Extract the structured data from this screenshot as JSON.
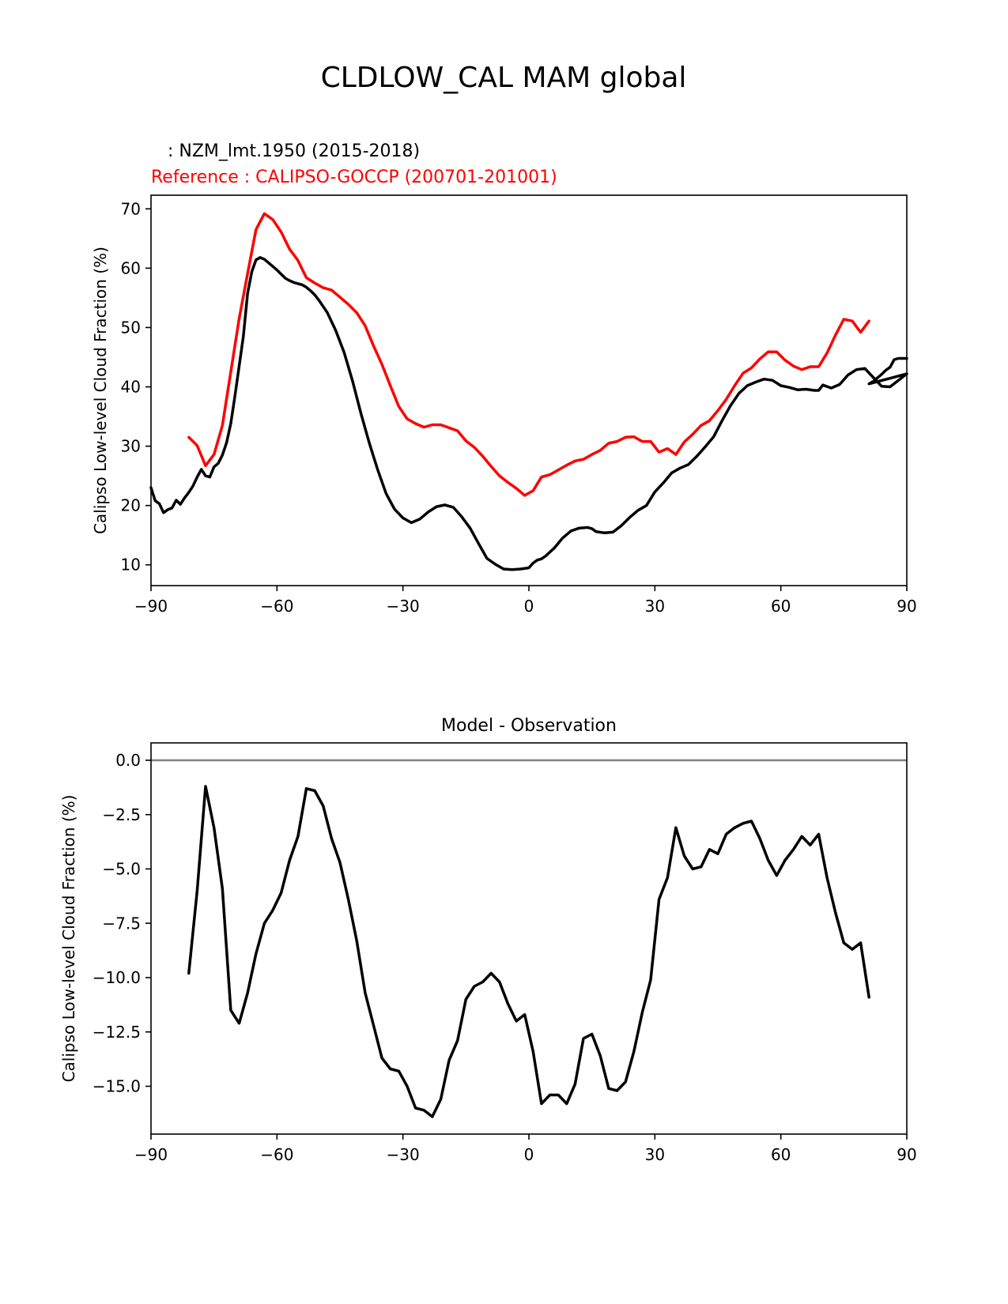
{
  "figure": {
    "suptitle": "CLDLOW_CAL MAM global"
  },
  "chart_data": [
    {
      "type": "line",
      "title_test": "   : NZM_lmt.1950 (2015-2018)",
      "title_ref": "Reference : CALIPSO-GOCCP (200701-201001)",
      "ylabel": "Calipso Low-level Cloud Fraction (%)",
      "xlim": [
        -90,
        90
      ],
      "ylim": [
        6.5,
        72.3
      ],
      "xticks": [
        -90,
        -60,
        -30,
        0,
        30,
        60,
        90
      ],
      "xtick_labels": [
        "−90",
        "−60",
        "−30",
        "0",
        "30",
        "60",
        "90"
      ],
      "yticks": [
        10,
        20,
        30,
        40,
        50,
        60,
        70
      ],
      "ytick_labels": [
        "10",
        "20",
        "30",
        "40",
        "50",
        "60",
        "70"
      ],
      "series": [
        {
          "name": "NZM_lmt.1950 (2015-2018)",
          "color": "#000000",
          "x": [
            -90,
            -89,
            -88,
            -87,
            -86,
            -85,
            -84,
            -83,
            -82,
            -81,
            -80,
            -79,
            -78,
            -77,
            -76,
            -75,
            -74,
            -73,
            -72,
            -71,
            -70,
            -69,
            -68,
            -67,
            -66,
            -65,
            -64,
            -63,
            -62,
            -61,
            -60,
            -59,
            -58,
            -57,
            -56,
            -55,
            -54,
            -53,
            -52,
            -51,
            -50,
            -48,
            -46,
            -44,
            -42,
            -40,
            -38,
            -36,
            -34,
            -32,
            -30,
            -28,
            -26,
            -24,
            -22,
            -20,
            -18,
            -16,
            -14,
            -12,
            -10,
            -8,
            -6,
            -4,
            -2,
            0,
            1,
            2,
            3,
            4,
            6,
            8,
            10,
            12,
            14,
            15,
            16,
            18,
            20,
            22,
            24,
            26,
            28,
            30,
            32,
            34,
            36,
            38,
            40,
            42,
            44,
            46,
            48,
            50,
            52,
            54,
            56,
            58,
            60,
            62,
            64,
            66,
            68,
            69,
            70,
            72,
            74,
            76,
            78,
            80,
            82,
            84,
            86,
            88,
            90
          ],
          "y": [
            23.0,
            20.8,
            20.3,
            18.8,
            19.3,
            19.6,
            20.9,
            20.2,
            21.3,
            22.2,
            23.3,
            24.8,
            26.1,
            25.0,
            24.8,
            26.5,
            27.1,
            28.5,
            30.6,
            33.8,
            38.5,
            43.5,
            48.5,
            55.8,
            59.4,
            61.4,
            61.8,
            61.5,
            60.9,
            60.3,
            59.7,
            59.0,
            58.3,
            57.9,
            57.6,
            57.4,
            57.2,
            56.8,
            56.2,
            55.5,
            54.6,
            52.5,
            49.5,
            45.8,
            41.0,
            35.5,
            30.5,
            26.0,
            22.0,
            19.4,
            17.9,
            17.1,
            17.7,
            18.9,
            19.8,
            20.1,
            19.7,
            18.1,
            16.2,
            13.6,
            11.1,
            10.1,
            9.3,
            9.2,
            9.3,
            9.5,
            10.3,
            10.8,
            11.0,
            11.5,
            12.8,
            14.5,
            15.7,
            16.2,
            16.3,
            16.1,
            15.6,
            15.4,
            15.5,
            16.6,
            18.0,
            19.2,
            20.0,
            22.3,
            23.8,
            25.5,
            26.3,
            26.9,
            28.3,
            29.9,
            31.6,
            34.3,
            36.8,
            38.9,
            40.2,
            40.8,
            41.3,
            41.1,
            40.2,
            39.9,
            39.5,
            39.6,
            39.4,
            39.4,
            40.3,
            39.8,
            40.4,
            42.0,
            42.9,
            43.1,
            41.6,
            40.1,
            40.0,
            41.1,
            42.2
          ],
          "x_tail": [
            81,
            82,
            83,
            84,
            85,
            86,
            87,
            88,
            89,
            90
          ],
          "y_tail": [
            40.5,
            40.9,
            41.5,
            42.1,
            42.8,
            43.3,
            44.6,
            44.8,
            44.8,
            44.8
          ]
        },
        {
          "name": "CALIPSO-GOCCP (200701-201001)",
          "color": "#ff0000",
          "x": [
            -81,
            -79,
            -77,
            -75,
            -73,
            -71,
            -69,
            -67,
            -65,
            -63,
            -61,
            -59,
            -57,
            -55,
            -53,
            -51,
            -49,
            -47,
            -45,
            -43,
            -41,
            -39,
            -37,
            -35,
            -33,
            -31,
            -29,
            -27,
            -25,
            -23,
            -21,
            -19,
            -17,
            -15,
            -13,
            -11,
            -9,
            -7,
            -5,
            -3,
            -1,
            1,
            3,
            5,
            7,
            9,
            11,
            13,
            15,
            17,
            19,
            21,
            23,
            25,
            27,
            29,
            31,
            33,
            35,
            37,
            39,
            41,
            43,
            45,
            47,
            49,
            51,
            53,
            55,
            57,
            59,
            61,
            63,
            65,
            67,
            69,
            71,
            73,
            75,
            77,
            79,
            81
          ],
          "y": [
            31.5,
            30.1,
            26.7,
            28.6,
            33.5,
            42.5,
            51.5,
            59.1,
            66.5,
            69.2,
            68.2,
            66.1,
            63.2,
            61.3,
            58.4,
            57.5,
            56.7,
            56.3,
            55.1,
            53.9,
            52.5,
            50.3,
            46.9,
            43.8,
            40.2,
            36.7,
            34.6,
            33.8,
            33.2,
            33.6,
            33.6,
            33.1,
            32.6,
            30.9,
            29.8,
            28.3,
            26.6,
            25.0,
            23.9,
            22.9,
            21.7,
            22.5,
            24.8,
            25.2,
            26.0,
            26.8,
            27.5,
            27.8,
            28.6,
            29.3,
            30.5,
            30.8,
            31.5,
            31.6,
            30.8,
            30.8,
            29.0,
            29.6,
            28.6,
            30.7,
            32.0,
            33.5,
            34.3,
            36.0,
            37.9,
            40.2,
            42.3,
            43.2,
            44.7,
            45.9,
            45.9,
            44.5,
            43.5,
            42.9,
            43.4,
            43.4,
            45.7,
            48.7,
            51.4,
            51.1,
            49.2,
            51.1
          ]
        }
      ]
    },
    {
      "type": "line",
      "title": "Model - Observation",
      "ylabel": "Calipso Low-level Cloud Fraction (%)",
      "xlim": [
        -90,
        90
      ],
      "ylim": [
        -17.2,
        0.8
      ],
      "xticks": [
        -90,
        -60,
        -30,
        0,
        30,
        60,
        90
      ],
      "xtick_labels": [
        "−90",
        "−60",
        "−30",
        "0",
        "30",
        "60",
        "90"
      ],
      "yticks": [
        0.0,
        -2.5,
        -5.0,
        -7.5,
        -10.0,
        -12.5,
        -15.0
      ],
      "ytick_labels": [
        "0.0",
        "−2.5",
        "−5.0",
        "−7.5",
        "−10.0",
        "−12.5",
        "−15.0"
      ],
      "zero_line_color": "#808080",
      "series": [
        {
          "name": "Model - Observation",
          "color": "#000000",
          "x": [
            -81,
            -79,
            -77,
            -75,
            -73,
            -71,
            -69,
            -67,
            -65,
            -63,
            -61,
            -59,
            -57,
            -55,
            -53,
            -51,
            -49,
            -47,
            -45,
            -43,
            -41,
            -39,
            -37,
            -35,
            -33,
            -31,
            -29,
            -27,
            -25,
            -23,
            -21,
            -19,
            -17,
            -15,
            -13,
            -11,
            -9,
            -7,
            -5,
            -3,
            -1,
            1,
            3,
            5,
            7,
            9,
            11,
            13,
            15,
            17,
            19,
            21,
            23,
            25,
            27,
            29,
            31,
            33,
            35,
            37,
            39,
            41,
            43,
            45,
            47,
            49,
            51,
            53,
            55,
            57,
            59,
            61,
            63,
            65,
            67,
            69,
            71,
            73,
            75,
            77,
            79,
            81
          ],
          "y": [
            -9.8,
            -6.0,
            -1.2,
            -3.1,
            -5.9,
            -11.5,
            -12.1,
            -10.7,
            -8.9,
            -7.5,
            -6.9,
            -6.1,
            -4.6,
            -3.5,
            -1.3,
            -1.4,
            -2.1,
            -3.6,
            -4.7,
            -6.4,
            -8.3,
            -10.7,
            -12.2,
            -13.7,
            -14.2,
            -14.3,
            -15.0,
            -16.0,
            -16.1,
            -16.4,
            -15.6,
            -13.8,
            -12.9,
            -11.0,
            -10.4,
            -10.2,
            -9.8,
            -10.2,
            -11.2,
            -12.0,
            -11.7,
            -13.4,
            -15.8,
            -15.4,
            -15.4,
            -15.8,
            -14.9,
            -12.8,
            -12.6,
            -13.6,
            -15.1,
            -15.2,
            -14.8,
            -13.4,
            -11.6,
            -10.1,
            -6.4,
            -5.4,
            -3.1,
            -4.4,
            -5.0,
            -4.9,
            -4.1,
            -4.3,
            -3.4,
            -3.1,
            -2.9,
            -2.8,
            -3.6,
            -4.6,
            -5.3,
            -4.6,
            -4.1,
            -3.5,
            -3.9,
            -3.4,
            -5.4,
            -7.0,
            -8.4,
            -8.7,
            -8.4,
            -10.9
          ]
        }
      ]
    }
  ]
}
